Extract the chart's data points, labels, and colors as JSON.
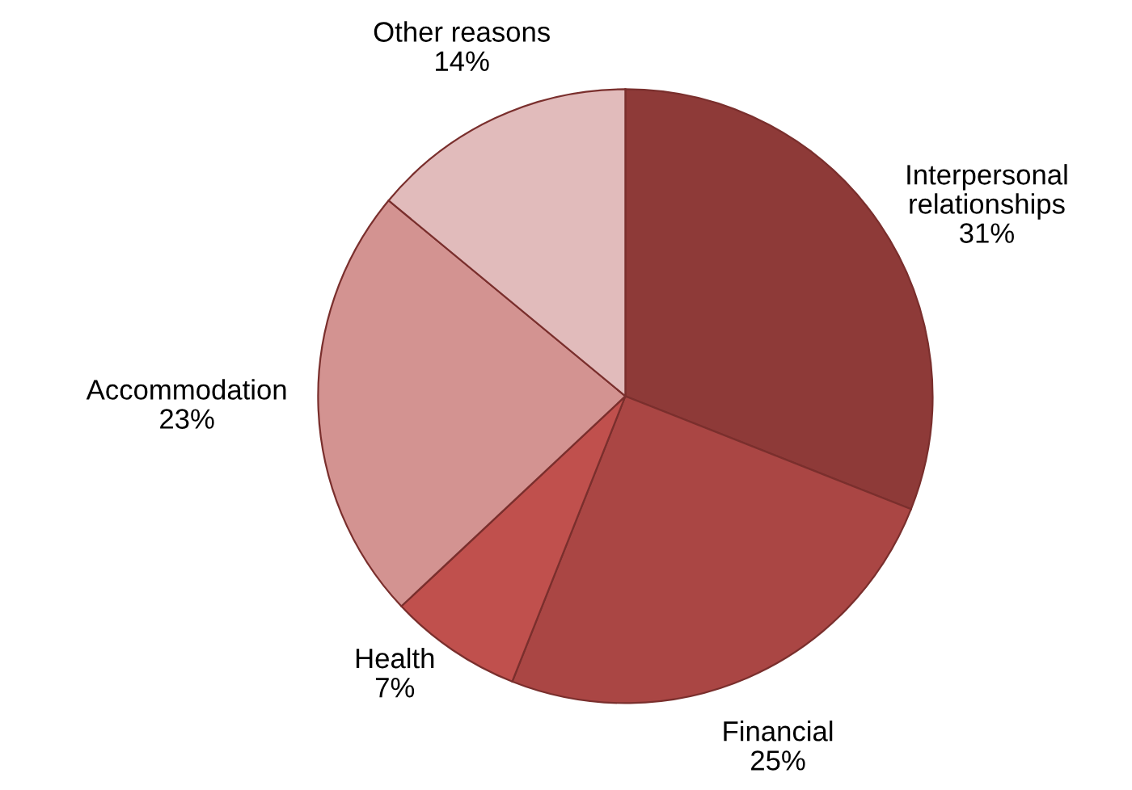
{
  "chart_data": {
    "type": "pie",
    "categories": [
      "Interpersonal relationships",
      "Financial",
      "Health",
      "Accommodation",
      "Other reasons"
    ],
    "values": [
      31,
      25,
      7,
      23,
      14
    ],
    "colors": [
      "#8e3a38",
      "#aa4644",
      "#c0504d",
      "#d39391",
      "#e1bbbb"
    ],
    "value_labels": [
      "31%",
      "25%",
      "7%",
      "23%",
      "14%"
    ],
    "legend": false
  }
}
